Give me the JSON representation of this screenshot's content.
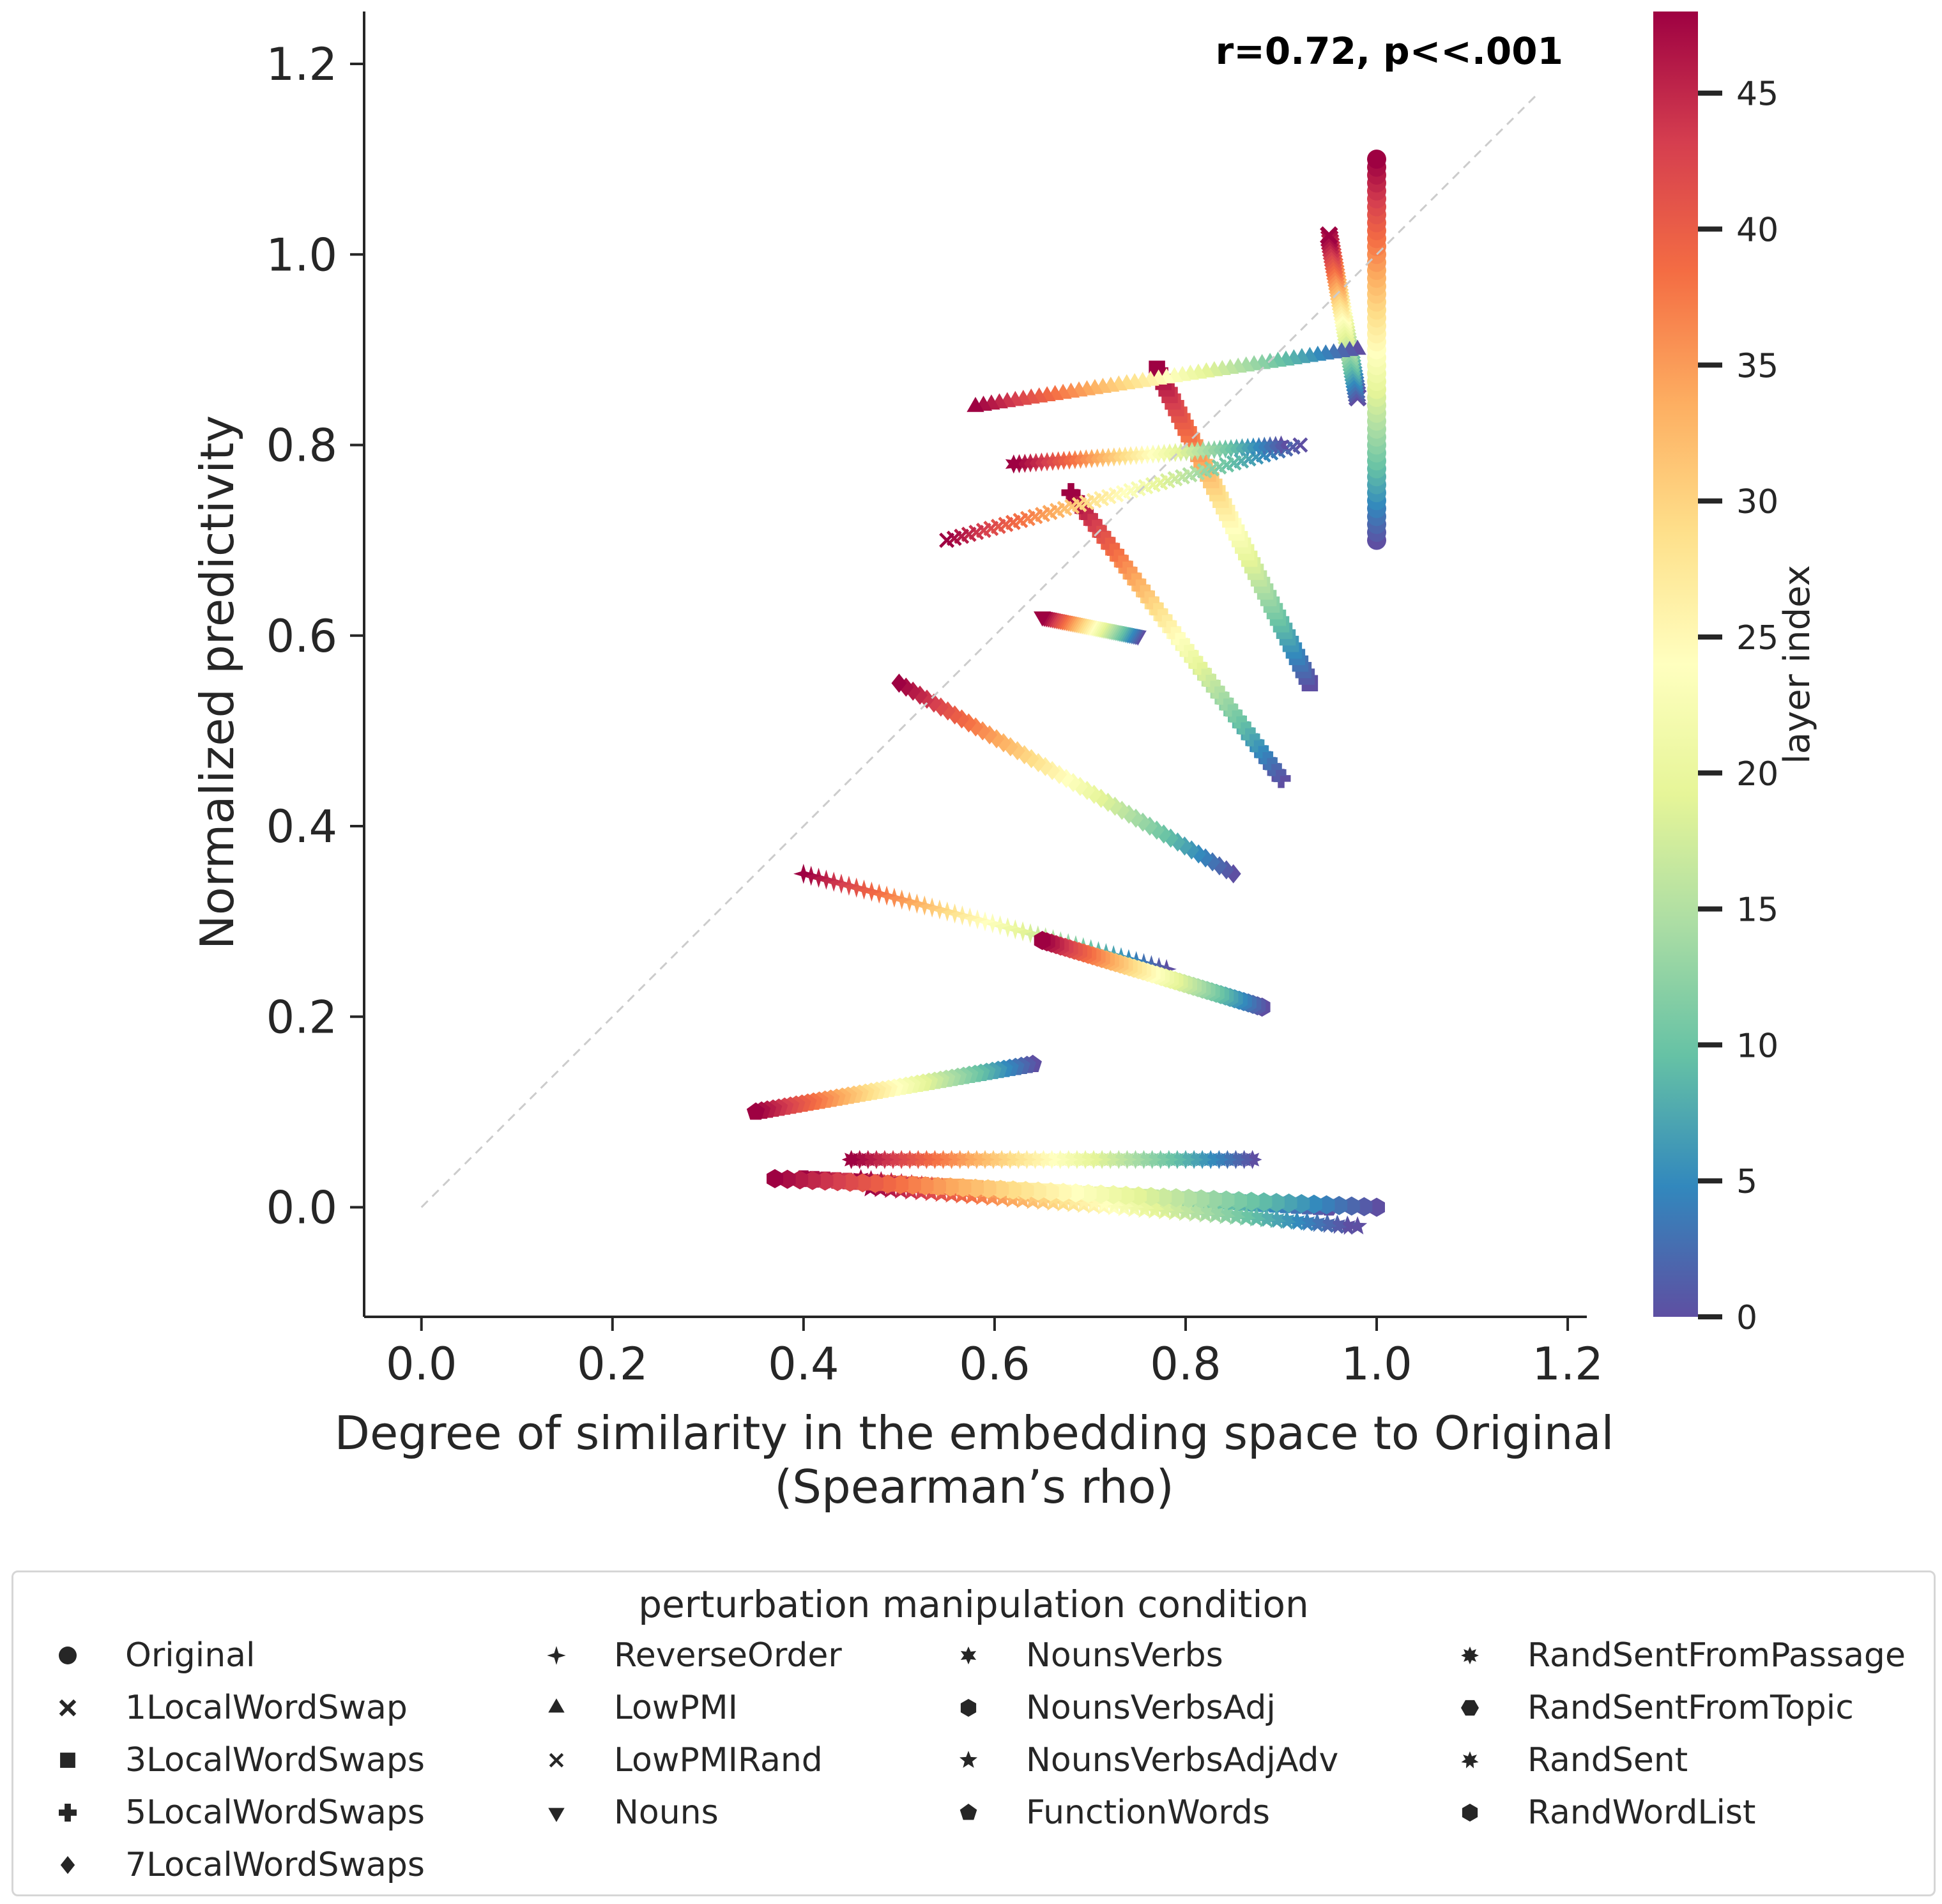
{
  "chart_data": {
    "type": "scatter",
    "annotation": "r=0.72, p<<.001",
    "xlabel_line1": "Degree of similarity in the embedding space to Original",
    "xlabel_line2": "(Spearman’s rho)",
    "ylabel": "Normalized predictivity",
    "xlim": [
      -0.06,
      1.22
    ],
    "ylim": [
      -0.115,
      1.255
    ],
    "xticks": [
      "0.0",
      "0.2",
      "0.4",
      "0.6",
      "0.8",
      "1.0",
      "1.2"
    ],
    "yticks": [
      "0.0",
      "0.2",
      "0.4",
      "0.6",
      "0.8",
      "1.0",
      "1.2"
    ],
    "identity_line": {
      "x": [
        0.0,
        1.17
      ],
      "y": [
        0.0,
        1.17
      ],
      "color": "#cccccc",
      "style": "dashed"
    },
    "colorbar": {
      "label": "layer index",
      "range": [
        0,
        48
      ],
      "ticks": [
        "0",
        "5",
        "10",
        "15",
        "20",
        "25",
        "30",
        "35",
        "40",
        "45"
      ],
      "colormap": "Spectral_r"
    },
    "legend": {
      "title": "perturbation manipulation condition",
      "entries": [
        {
          "label": "Original",
          "marker": "circle"
        },
        {
          "label": "1LocalWordSwap",
          "marker": "x"
        },
        {
          "label": "3LocalWordSwaps",
          "marker": "square"
        },
        {
          "label": "5LocalWordSwaps",
          "marker": "plus"
        },
        {
          "label": "7LocalWordSwaps",
          "marker": "diamond"
        },
        {
          "label": "ReverseOrder",
          "marker": "star4"
        },
        {
          "label": "LowPMI",
          "marker": "triangle-up"
        },
        {
          "label": "LowPMIRand",
          "marker": "x-thin"
        },
        {
          "label": "Nouns",
          "marker": "triangle-down"
        },
        {
          "label": "NounsVerbs",
          "marker": "star6"
        },
        {
          "label": "NounsVerbsAdj",
          "marker": "hexagon"
        },
        {
          "label": "NounsVerbsAdjAdv",
          "marker": "star5"
        },
        {
          "label": "FunctionWords",
          "marker": "pentagon"
        },
        {
          "label": "RandSentFromPassage",
          "marker": "star8"
        },
        {
          "label": "RandSentFromTopic",
          "marker": "hexagon-flat"
        },
        {
          "label": "RandSent",
          "marker": "star7"
        },
        {
          "label": "RandWordList",
          "marker": "hexagon"
        }
      ]
    },
    "series": [
      {
        "name": "Original",
        "marker": "circle",
        "layers": [
          0,
          48
        ],
        "x": [
          1.0,
          1.0
        ],
        "y": [
          0.7,
          1.1
        ]
      },
      {
        "name": "1LocalWordSwap",
        "marker": "x",
        "layers": [
          0,
          48
        ],
        "x": [
          0.98,
          0.95
        ],
        "y": [
          0.85,
          1.02
        ]
      },
      {
        "name": "3LocalWordSwaps",
        "marker": "square",
        "layers": [
          0,
          48
        ],
        "x": [
          0.93,
          0.77
        ],
        "y": [
          0.55,
          0.88
        ]
      },
      {
        "name": "5LocalWordSwaps",
        "marker": "plus",
        "layers": [
          0,
          48
        ],
        "x": [
          0.9,
          0.68
        ],
        "y": [
          0.45,
          0.75
        ]
      },
      {
        "name": "7LocalWordSwaps",
        "marker": "diamond",
        "layers": [
          0,
          48
        ],
        "x": [
          0.85,
          0.5
        ],
        "y": [
          0.35,
          0.55
        ]
      },
      {
        "name": "ReverseOrder",
        "marker": "star4",
        "layers": [
          0,
          48
        ],
        "x": [
          0.78,
          0.4
        ],
        "y": [
          0.25,
          0.35
        ]
      },
      {
        "name": "LowPMI",
        "marker": "triangle-up",
        "layers": [
          0,
          48
        ],
        "x": [
          0.98,
          0.58
        ],
        "y": [
          0.9,
          0.84
        ]
      },
      {
        "name": "LowPMIRand",
        "marker": "x-thin",
        "layers": [
          0,
          48
        ],
        "x": [
          0.92,
          0.55
        ],
        "y": [
          0.8,
          0.7
        ]
      },
      {
        "name": "Nouns",
        "marker": "triangle-down",
        "layers": [
          0,
          48
        ],
        "x": [
          0.75,
          0.65
        ],
        "y": [
          0.6,
          0.62
        ]
      },
      {
        "name": "NounsVerbs",
        "marker": "star6",
        "layers": [
          0,
          48
        ],
        "x": [
          0.9,
          0.62
        ],
        "y": [
          0.8,
          0.78
        ]
      },
      {
        "name": "NounsVerbsAdj",
        "marker": "hexagon",
        "layers": [
          0,
          48
        ],
        "x": [
          0.88,
          0.65
        ],
        "y": [
          0.21,
          0.28
        ]
      },
      {
        "name": "NounsVerbsAdjAdv",
        "marker": "star5",
        "layers": [
          0,
          48
        ],
        "x": [
          0.98,
          0.47
        ],
        "y": [
          -0.02,
          0.02
        ]
      },
      {
        "name": "FunctionWords",
        "marker": "pentagon",
        "layers": [
          0,
          48
        ],
        "x": [
          0.64,
          0.35
        ],
        "y": [
          0.15,
          0.1
        ]
      },
      {
        "name": "RandSentFromPassage",
        "marker": "star8",
        "layers": [
          0,
          48
        ],
        "x": [
          0.87,
          0.45
        ],
        "y": [
          0.05,
          0.05
        ]
      },
      {
        "name": "RandSentFromTopic",
        "marker": "hexagon-flat",
        "layers": [
          0,
          48
        ],
        "x": [
          0.95,
          0.4
        ],
        "y": [
          0.0,
          0.03
        ]
      },
      {
        "name": "RandSent",
        "marker": "star7",
        "layers": [
          0,
          48
        ],
        "x": [
          0.97,
          0.46
        ],
        "y": [
          -0.02,
          0.03
        ]
      },
      {
        "name": "RandWordList",
        "marker": "hexagon",
        "layers": [
          0,
          48
        ],
        "x": [
          1.0,
          0.37
        ],
        "y": [
          0.0,
          0.03
        ]
      }
    ]
  }
}
